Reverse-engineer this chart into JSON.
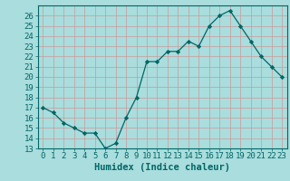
{
  "x": [
    0,
    1,
    2,
    3,
    4,
    5,
    6,
    7,
    8,
    9,
    10,
    11,
    12,
    13,
    14,
    15,
    16,
    17,
    18,
    19,
    20,
    21,
    22,
    23
  ],
  "y": [
    17,
    16.5,
    15.5,
    15,
    14.5,
    14.5,
    13,
    13.5,
    16,
    18,
    21.5,
    21.5,
    22.5,
    22.5,
    23.5,
    23,
    25,
    26,
    26.5,
    25,
    23.5,
    22,
    21,
    20
  ],
  "line_color": "#006666",
  "marker_color": "#006666",
  "bg_color": "#aadddd",
  "grid_color": "#cc9999",
  "xlabel": "Humidex (Indice chaleur)",
  "xlim": [
    -0.5,
    23.5
  ],
  "ylim": [
    13,
    27
  ],
  "yticks": [
    13,
    14,
    15,
    16,
    17,
    18,
    19,
    20,
    21,
    22,
    23,
    24,
    25,
    26
  ],
  "xtick_labels": [
    "0",
    "1",
    "2",
    "3",
    "4",
    "5",
    "6",
    "7",
    "8",
    "9",
    "10",
    "11",
    "12",
    "13",
    "14",
    "15",
    "16",
    "17",
    "18",
    "19",
    "20",
    "21",
    "22",
    "23"
  ],
  "tick_color": "#006666",
  "spine_color": "#006666",
  "tick_fontsize": 6.5,
  "xlabel_fontsize": 7.5
}
